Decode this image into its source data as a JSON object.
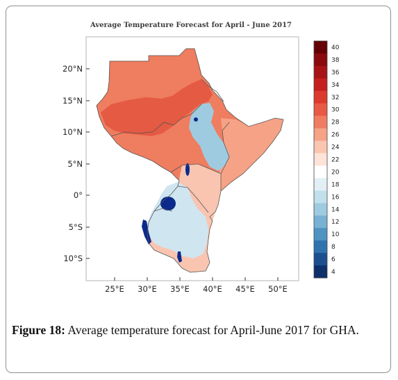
{
  "map": {
    "title": "Average Temperature Forecast for April - June 2017",
    "lat_ticks": [
      "20°N",
      "15°N",
      "10°N",
      "5°N",
      "0°",
      "5°S",
      "10°S"
    ],
    "lon_ticks": [
      "25°E",
      "30°E",
      "35°E",
      "40°E",
      "45°E",
      "50°E"
    ],
    "colorbar_ticks": [
      "40",
      "38",
      "36",
      "34",
      "32",
      "30",
      "28",
      "26",
      "24",
      "22",
      "20",
      "18",
      "16",
      "14",
      "12",
      "10",
      "8",
      "6",
      "4"
    ],
    "colorbar_colors": [
      "#650005",
      "#8a0a0d",
      "#a81416",
      "#c61f1f",
      "#db3a2c",
      "#e85a44",
      "#f07d62",
      "#f6a286",
      "#fac6b1",
      "#fde3d8",
      "#ffffff",
      "#e2f0f6",
      "#c1e0ec",
      "#9fcbe0",
      "#78b1d3",
      "#4f93c2",
      "#2f72ad",
      "#1c4f8f",
      "#0d2f6a"
    ],
    "colors": {
      "north_land": "#ef7d5f",
      "hot_core": "#e55a43",
      "horn": "#f6a286",
      "south_warm": "#f9c5b0",
      "cool": "#cfe6f1",
      "highland": "#9fcbe0",
      "lake": "#0b2a8c"
    }
  },
  "caption": {
    "label": "Figure 18:",
    "text": " Average temperature forecast for April-June 2017 for GHA."
  }
}
